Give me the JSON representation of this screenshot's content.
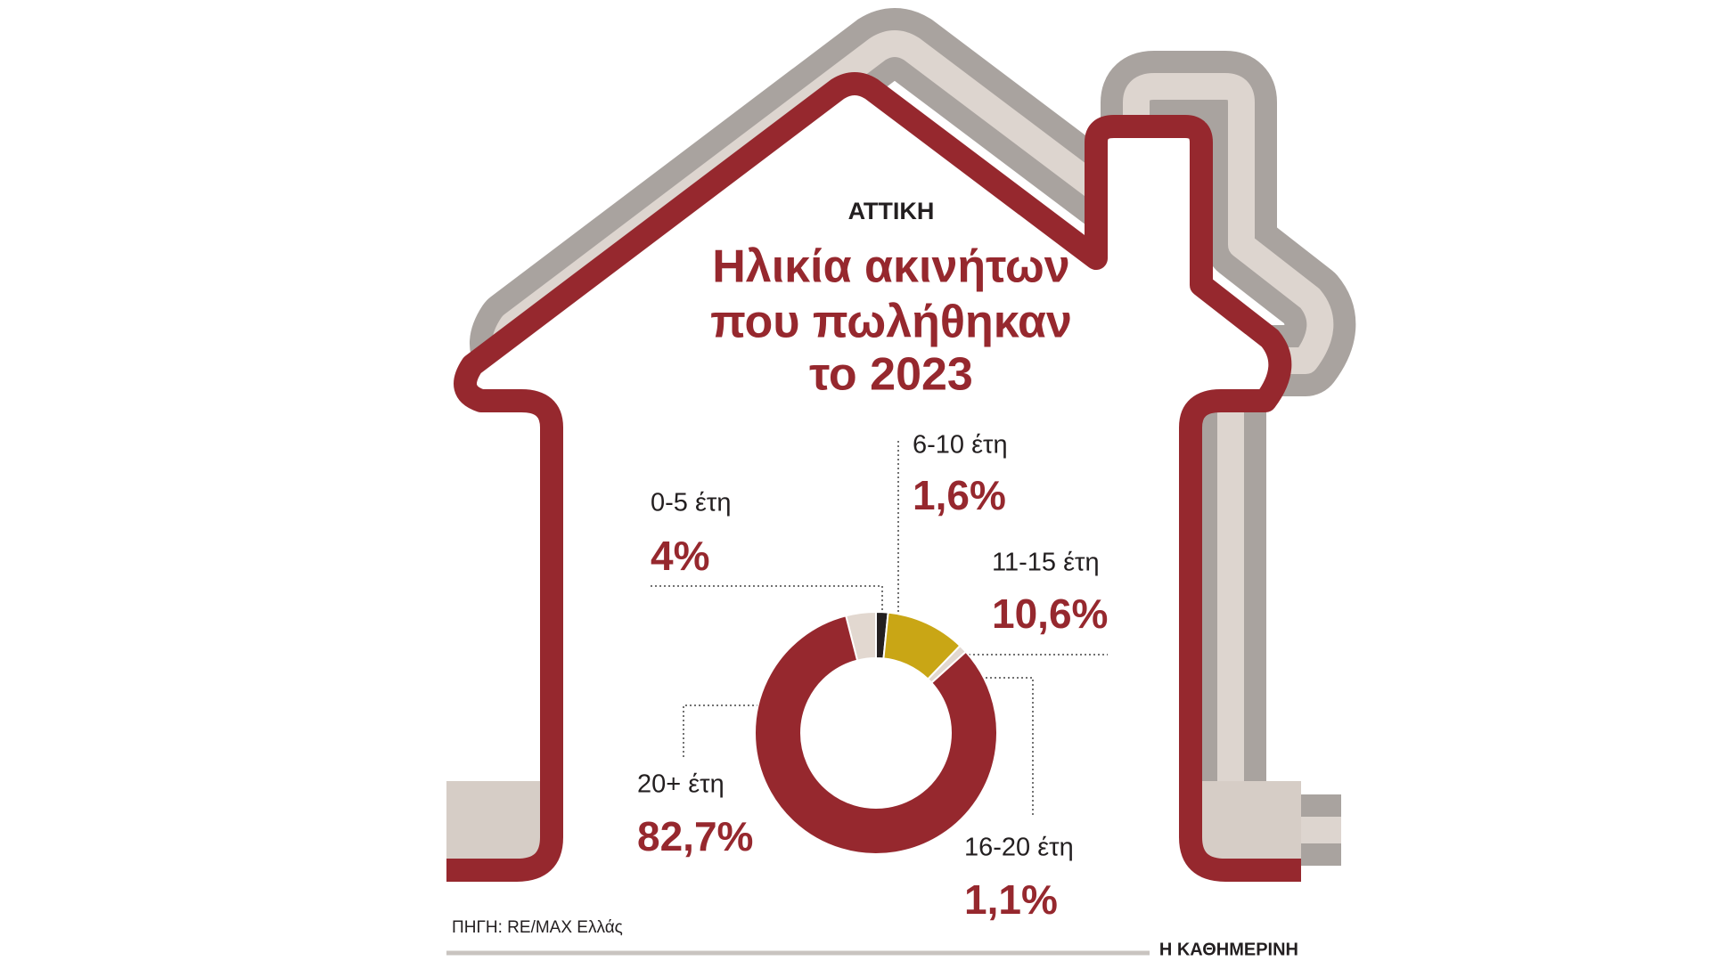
{
  "chart_data": {
    "type": "pie",
    "supertitle": "ΑΤΤΙΚΗ",
    "title": [
      "Ηλικία ακινήτων",
      "που πωλήθηκαν",
      "το 2023"
    ],
    "categories": [
      "0-5 έτη",
      "6-10 έτη",
      "11-15 έτη",
      "16-20 έτη",
      "20+ έτη"
    ],
    "values": [
      4,
      1.6,
      10.6,
      1.1,
      82.7
    ],
    "value_labels": [
      "4%",
      "1,6%",
      "10,6%",
      "1,1%",
      "82,7%"
    ],
    "colors": [
      "#e2d8d0",
      "#231f20",
      "#c9a615",
      "#e2d8d0",
      "#96282e"
    ],
    "source": "ΠΗΓΗ: RE/MAX Ελλάς",
    "brand": "Η ΚΑΘΗΜΕΡΙΝΗ"
  }
}
